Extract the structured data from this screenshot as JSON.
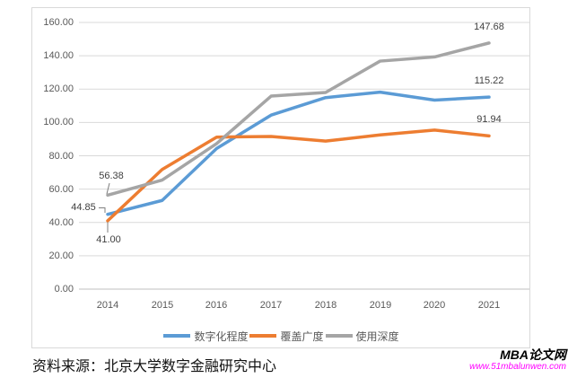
{
  "chart_data": {
    "type": "line",
    "categories": [
      "2014",
      "2015",
      "2016",
      "2017",
      "2018",
      "2019",
      "2020",
      "2021"
    ],
    "series": [
      {
        "name": "数字化程度",
        "color": "#5B9BD5",
        "values": [
          44.85,
          53.2,
          84.4,
          104.4,
          114.9,
          118.2,
          113.4,
          115.22
        ]
      },
      {
        "name": "覆盖广度",
        "color": "#ED7D31",
        "values": [
          41.0,
          71.8,
          91.2,
          91.6,
          88.8,
          92.5,
          95.4,
          91.94
        ]
      },
      {
        "name": "使用深度",
        "color": "#A5A5A5",
        "values": [
          56.38,
          65.4,
          87.3,
          115.8,
          118.0,
          136.8,
          139.3,
          147.68
        ]
      }
    ],
    "y_ticks": [
      "160.00",
      "140.00",
      "120.00",
      "100.00",
      "80.00",
      "60.00",
      "40.00",
      "20.00",
      "0.00"
    ],
    "ylim": [
      0,
      160
    ],
    "grid": true,
    "legend_position": "bottom",
    "point_labels": {
      "depth_2014": "56.38",
      "digitization_2014": "44.85",
      "coverage_2014": "41.00",
      "depth_2021": "147.68",
      "digitization_2021": "115.22",
      "coverage_2021": "91.94"
    },
    "colors": {
      "gridline": "#D9D9D9",
      "axis_line": "#BFBFBF",
      "leader_line": "#7F7F7F"
    }
  },
  "footer": {
    "source_note": "资料来源：北京大学数字金融研究中心"
  },
  "watermark": {
    "title": "MBA论文网",
    "url": "www.51mbalunwen.com",
    "url_color": "#FF00FF"
  }
}
